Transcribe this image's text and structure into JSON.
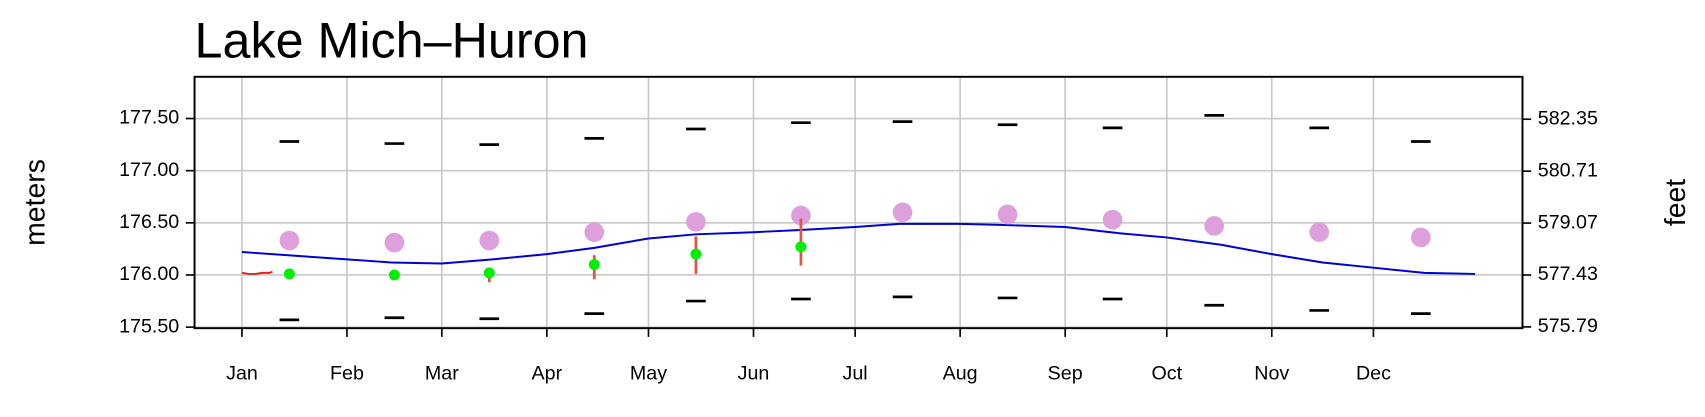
{
  "chart_data": {
    "type": "line",
    "title": "Lake Mich–Huron",
    "ylabel": "meters",
    "y2label": "feet",
    "xlim": [
      -13,
      379
    ],
    "xticks": [
      {
        "value": 1,
        "label": "Jan"
      },
      {
        "value": 32,
        "label": "Feb"
      },
      {
        "value": 60,
        "label": "Mar"
      },
      {
        "value": 91,
        "label": "Apr"
      },
      {
        "value": 121,
        "label": "May"
      },
      {
        "value": 152,
        "label": "Jun"
      },
      {
        "value": 182,
        "label": "Jul"
      },
      {
        "value": 213,
        "label": "Aug"
      },
      {
        "value": 244,
        "label": "Sep"
      },
      {
        "value": 274,
        "label": "Oct"
      },
      {
        "value": 305,
        "label": "Nov"
      },
      {
        "value": 335,
        "label": "Dec"
      }
    ],
    "ylim": [
      175.49,
      177.9
    ],
    "yticks": [
      {
        "value": 175.5,
        "label": "175.50"
      },
      {
        "value": 176,
        "label": "176.00"
      },
      {
        "value": 176.5,
        "label": "176.50"
      },
      {
        "value": 177,
        "label": "177.00"
      },
      {
        "value": 177.5,
        "label": "177.50"
      }
    ],
    "y2lim": [
      575.75,
      583.69
    ],
    "y2ticks": [
      575.79,
      577.43,
      579.07,
      580.71,
      582.35
    ],
    "grid": true,
    "series": [
      {
        "style": "line",
        "color": "#0000cc",
        "x": [
          1,
          32,
          45,
          60,
          75,
          91,
          105,
          121,
          135,
          152,
          165,
          182,
          195,
          213,
          225,
          244,
          260,
          274,
          290,
          305,
          320,
          335,
          350,
          365
        ],
        "values": [
          176.22,
          176.15,
          176.12,
          176.11,
          176.15,
          176.2,
          176.26,
          176.35,
          176.39,
          176.41,
          176.43,
          176.46,
          176.49,
          176.49,
          176.48,
          176.46,
          176.4,
          176.36,
          176.29,
          176.2,
          176.12,
          176.07,
          176.02,
          176.01
        ]
      },
      {
        "style": "line",
        "color": "#dd2222",
        "x": [
          1,
          3,
          5,
          7,
          9,
          10
        ],
        "values": [
          176.02,
          176.01,
          176.01,
          176.02,
          176.02,
          176.03
        ]
      },
      {
        "style": "dash",
        "color": "#000000",
        "x": [
          15,
          46,
          74,
          105,
          135,
          166,
          196,
          227,
          258,
          288,
          319,
          349
        ],
        "values": [
          177.28,
          177.26,
          177.25,
          177.31,
          177.4,
          177.46,
          177.47,
          177.44,
          177.41,
          177.53,
          177.41,
          177.28
        ]
      },
      {
        "style": "dash",
        "color": "#000000",
        "x": [
          15,
          46,
          74,
          105,
          135,
          166,
          196,
          227,
          258,
          288,
          319,
          349
        ],
        "values": [
          175.57,
          175.59,
          175.58,
          175.63,
          175.75,
          175.77,
          175.79,
          175.78,
          175.77,
          175.71,
          175.66,
          175.63
        ]
      },
      {
        "style": "dot",
        "color": "#dda0dd",
        "size": 9,
        "x": [
          15,
          46,
          74,
          105,
          135,
          166,
          196,
          227,
          258,
          288,
          319,
          349
        ],
        "values": [
          176.33,
          176.31,
          176.33,
          176.41,
          176.51,
          176.57,
          176.6,
          176.58,
          176.53,
          176.47,
          176.41,
          176.36
        ]
      },
      {
        "style": "dot",
        "color": "#00ee00",
        "size": 5,
        "range_color": "#e0554a",
        "x": [
          15,
          46,
          74,
          105,
          135,
          166
        ],
        "values": [
          176.01,
          176.0,
          176.02,
          176.1,
          176.2,
          176.27
        ],
        "low": [
          null,
          null,
          175.93,
          175.96,
          176.01,
          176.09
        ],
        "high": [
          null,
          null,
          176.05,
          176.19,
          176.37,
          176.54
        ]
      }
    ]
  }
}
